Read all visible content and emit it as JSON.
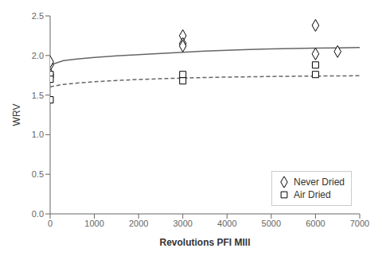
{
  "chart_data": {
    "type": "scatter",
    "xlabel": "Revolutions PFI MIll",
    "ylabel": "WRV",
    "xlim": [
      0,
      7000
    ],
    "ylim": [
      0,
      2.5
    ],
    "xticks": [
      0,
      1000,
      2000,
      3000,
      4000,
      5000,
      6000,
      7000
    ],
    "yticks": [
      {
        "value": 0,
        "label": "0.0"
      },
      0.5,
      {
        "value": 1,
        "label": "1.0"
      },
      1.5,
      {
        "value": 2,
        "label": "2.0"
      },
      2.5
    ],
    "grid": false,
    "legend": "lower right",
    "series": [
      {
        "type": "line",
        "line_style": "solid",
        "color": "#666666",
        "x": [
          0,
          300,
          600,
          1000,
          1500,
          2000,
          2500,
          3000,
          3500,
          4000,
          4500,
          5000,
          5500,
          6000,
          6500,
          7000
        ],
        "values": [
          1.88,
          1.935,
          1.955,
          1.975,
          1.995,
          2.01,
          2.025,
          2.04,
          2.055,
          2.065,
          2.075,
          2.083,
          2.088,
          2.093,
          2.097,
          2.1
        ]
      },
      {
        "type": "line",
        "line_style": "dashed",
        "color": "#666666",
        "x": [
          0,
          300,
          600,
          1000,
          1500,
          2000,
          2500,
          3000,
          3500,
          4000,
          4500,
          5000,
          5500,
          6000,
          6500,
          7000
        ],
        "values": [
          1.605,
          1.635,
          1.652,
          1.668,
          1.685,
          1.697,
          1.707,
          1.715,
          1.722,
          1.727,
          1.731,
          1.735,
          1.738,
          1.74,
          1.742,
          1.744
        ]
      },
      {
        "type": "scatter",
        "name": "Never Dried",
        "marker": "diamond",
        "color": "#000000",
        "x": [
          0,
          0,
          0,
          3000,
          3000,
          3000,
          6000,
          6000,
          6500
        ],
        "values": [
          1.88,
          1.92,
          1.76,
          2.25,
          2.15,
          2.12,
          2.02,
          2.38,
          2.05
        ]
      },
      {
        "type": "scatter",
        "name": "Air Dried",
        "marker": "square",
        "color": "#000000",
        "x": [
          0,
          0,
          0,
          3000,
          3000,
          6000,
          6000
        ],
        "values": [
          1.76,
          1.7,
          1.44,
          1.76,
          1.68,
          1.88,
          1.76
        ]
      }
    ]
  }
}
